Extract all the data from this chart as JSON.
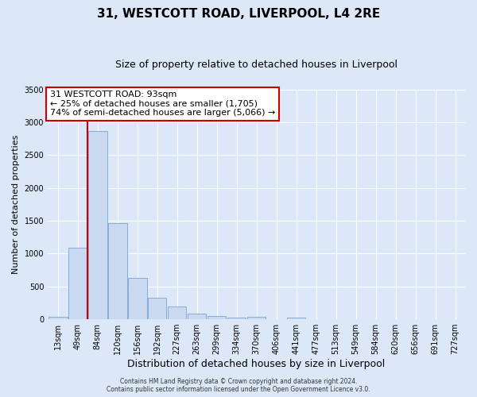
{
  "title": "31, WESTCOTT ROAD, LIVERPOOL, L4 2RE",
  "subtitle": "Size of property relative to detached houses in Liverpool",
  "xlabel": "Distribution of detached houses by size in Liverpool",
  "ylabel": "Number of detached properties",
  "bar_labels": [
    "13sqm",
    "49sqm",
    "84sqm",
    "120sqm",
    "156sqm",
    "192sqm",
    "227sqm",
    "263sqm",
    "299sqm",
    "334sqm",
    "370sqm",
    "406sqm",
    "441sqm",
    "477sqm",
    "513sqm",
    "549sqm",
    "584sqm",
    "620sqm",
    "656sqm",
    "691sqm",
    "727sqm"
  ],
  "bar_values": [
    40,
    1090,
    2870,
    1470,
    630,
    330,
    190,
    90,
    50,
    20,
    40,
    0,
    20,
    0,
    0,
    0,
    0,
    0,
    0,
    0,
    0
  ],
  "bar_color": "#c9d9f0",
  "bar_edge_color": "#7aa4d4",
  "vline_x_index": 2,
  "vline_color": "#cc0000",
  "ylim": [
    0,
    3500
  ],
  "yticks": [
    0,
    500,
    1000,
    1500,
    2000,
    2500,
    3000,
    3500
  ],
  "annotation_title": "31 WESTCOTT ROAD: 93sqm",
  "annotation_line1": "← 25% of detached houses are smaller (1,705)",
  "annotation_line2": "74% of semi-detached houses are larger (5,066) →",
  "annotation_box_facecolor": "#ffffff",
  "annotation_box_edgecolor": "#cc0000",
  "footer1": "Contains HM Land Registry data © Crown copyright and database right 2024.",
  "footer2": "Contains public sector information licensed under the Open Government Licence v3.0.",
  "bg_color": "#dce8f8",
  "plot_bg_color": "#dce8f8",
  "grid_color": "#ffffff",
  "title_fontsize": 11,
  "subtitle_fontsize": 9,
  "tick_label_fontsize": 7,
  "ylabel_fontsize": 8,
  "xlabel_fontsize": 9
}
